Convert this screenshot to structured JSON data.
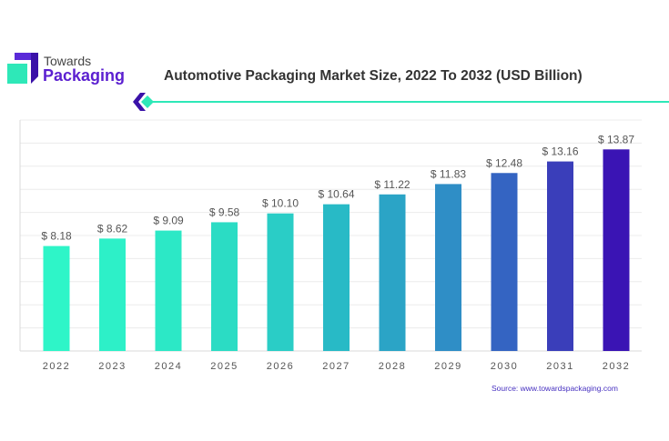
{
  "brand": {
    "line1": "Towards",
    "line2": "Packaging"
  },
  "source": "Source: www.towardspackaging.com",
  "chart_data": {
    "type": "bar",
    "title": "Automotive Packaging Market Size, 2022 To 2032 (USD Billion)",
    "xlabel": "",
    "ylabel": "",
    "categories": [
      "2022",
      "2023",
      "2024",
      "2025",
      "2026",
      "2027",
      "2028",
      "2029",
      "2030",
      "2031",
      "2032"
    ],
    "values": [
      8.18,
      8.62,
      9.09,
      9.58,
      10.1,
      10.64,
      11.22,
      11.83,
      12.48,
      13.16,
      13.87
    ],
    "labels": [
      "$ 8.18",
      "$ 8.62",
      "$ 9.09",
      "$ 9.58",
      "$ 10.10",
      "$ 10.64",
      "$ 11.22",
      "$ 11.83",
      "$ 12.48",
      "$ 13.16",
      "$ 13.87"
    ],
    "colors": [
      "#2ef5c8",
      "#2df0c8",
      "#2ce8c6",
      "#2bdcc4",
      "#2acdc6",
      "#28bac6",
      "#2ba4c6",
      "#2f8ec6",
      "#3464c2",
      "#3a3eba",
      "#3a14b4"
    ],
    "ylim": [
      2,
      15.6
    ],
    "grid": true
  }
}
